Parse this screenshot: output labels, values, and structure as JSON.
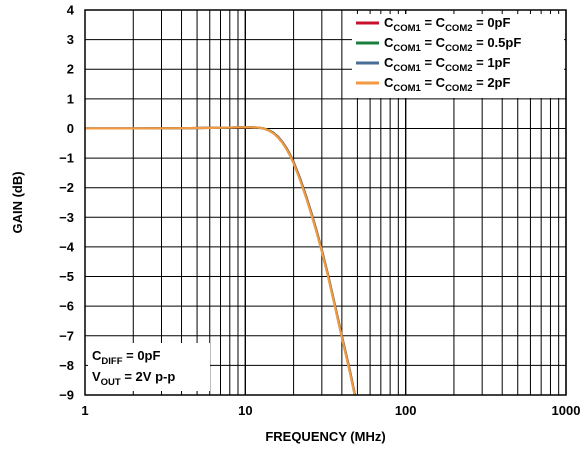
{
  "chart_data": {
    "type": "line",
    "xlabel": "FREQUENCY (MHz)",
    "ylabel": "GAIN (dB)",
    "x_scale": "log",
    "xlim": [
      1,
      1000
    ],
    "ylim": [
      -9,
      4
    ],
    "grid": true,
    "legend_position": "top-right",
    "x_ticks": [
      {
        "value": 1,
        "label": "1"
      },
      {
        "value": 10,
        "label": "10"
      },
      {
        "value": 100,
        "label": "100"
      },
      {
        "value": 1000,
        "label": "1000"
      }
    ],
    "y_ticks": [
      {
        "value": 4,
        "label": "4"
      },
      {
        "value": 3,
        "label": "3"
      },
      {
        "value": 2,
        "label": "2"
      },
      {
        "value": 1,
        "label": "1"
      },
      {
        "value": 0,
        "label": "0"
      },
      {
        "value": -1,
        "label": "−1"
      },
      {
        "value": -2,
        "label": "−2"
      },
      {
        "value": -3,
        "label": "−3"
      },
      {
        "value": -4,
        "label": "−4"
      },
      {
        "value": -5,
        "label": "−5"
      },
      {
        "value": -6,
        "label": "−6"
      },
      {
        "value": -7,
        "label": "−7"
      },
      {
        "value": -8,
        "label": "−8"
      },
      {
        "value": -9,
        "label": "−9"
      }
    ],
    "x": [
      1,
      2,
      4,
      6,
      8,
      10,
      12,
      13,
      14,
      15,
      16,
      17,
      18,
      19,
      20,
      22,
      24,
      26,
      28,
      30,
      33,
      36,
      40,
      45,
      50
    ],
    "series": [
      {
        "label": {
          "pre": "C",
          "sub1": "COM1",
          "mid": " = C",
          "sub2": "COM2",
          "post": " = 0pF"
        },
        "color": "#c8102e",
        "values": [
          0,
          0,
          0.01,
          0.02,
          0.03,
          0.04,
          0.03,
          0.0,
          -0.06,
          -0.15,
          -0.28,
          -0.45,
          -0.65,
          -0.88,
          -1.13,
          -1.7,
          -2.3,
          -2.9,
          -3.5,
          -4.1,
          -5.0,
          -5.9,
          -7.0,
          -8.2,
          -9.4
        ]
      },
      {
        "label": {
          "pre": "C",
          "sub1": "COM1",
          "mid": " = C",
          "sub2": "COM2",
          "post": " = 0.5pF"
        },
        "color": "#1a7f3c",
        "values": [
          0,
          0,
          0.01,
          0.02,
          0.03,
          0.04,
          0.03,
          0.0,
          -0.06,
          -0.15,
          -0.29,
          -0.46,
          -0.66,
          -0.89,
          -1.15,
          -1.72,
          -2.32,
          -2.92,
          -3.52,
          -4.12,
          -5.02,
          -5.92,
          -7.02,
          -8.22,
          -9.42
        ]
      },
      {
        "label": {
          "pre": "C",
          "sub1": "COM1",
          "mid": " = C",
          "sub2": "COM2",
          "post": " = 1pF"
        },
        "color": "#4a6f96",
        "values": [
          0,
          0,
          0.01,
          0.02,
          0.03,
          0.04,
          0.03,
          0.0,
          -0.07,
          -0.16,
          -0.3,
          -0.47,
          -0.67,
          -0.9,
          -1.16,
          -1.74,
          -2.34,
          -2.94,
          -3.54,
          -4.14,
          -5.04,
          -5.94,
          -7.04,
          -8.24,
          -9.44
        ]
      },
      {
        "label": {
          "pre": "C",
          "sub1": "COM1",
          "mid": " = C",
          "sub2": "COM2",
          "post": " = 2pF"
        },
        "color": "#f29a3f",
        "values": [
          0,
          0,
          0.01,
          0.02,
          0.03,
          0.04,
          0.03,
          0.0,
          -0.07,
          -0.17,
          -0.31,
          -0.48,
          -0.69,
          -0.92,
          -1.18,
          -1.76,
          -2.36,
          -2.96,
          -3.56,
          -4.16,
          -5.06,
          -5.96,
          -7.06,
          -8.26,
          -9.46
        ]
      }
    ],
    "annotation": {
      "line1": {
        "pre": "C",
        "sub": "DIFF",
        "post": " = 0pF"
      },
      "line2": {
        "pre": "V",
        "sub": "OUT",
        "post": " = 2V p-p"
      }
    }
  }
}
